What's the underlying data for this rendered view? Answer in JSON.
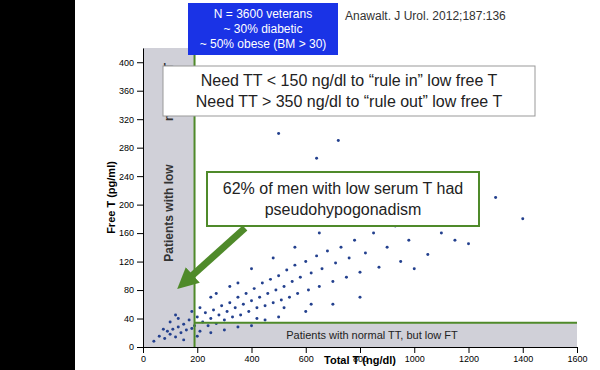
{
  "chart_data": {
    "type": "scatter",
    "x_label": "Total T (ng/dl)",
    "y_label": "Free T (pg/ml)",
    "xlim": [
      0,
      1600
    ],
    "xticks": [
      0,
      200,
      400,
      600,
      800,
      1000,
      1200,
      1400,
      1600
    ],
    "ylim": [
      0,
      420
    ],
    "yticks": [
      0,
      40,
      80,
      120,
      160,
      200,
      240,
      280,
      320,
      360,
      400
    ],
    "color": "#23408e",
    "marker": "circle",
    "x": [
      60,
      80,
      90,
      100,
      110,
      120,
      130,
      140,
      150,
      160,
      170,
      180,
      190,
      200,
      210,
      220,
      230,
      240,
      250,
      260,
      270,
      280,
      290,
      300,
      310,
      320,
      330,
      340,
      350,
      360,
      370,
      380,
      390,
      400,
      410,
      420,
      430,
      440,
      450,
      460,
      470,
      480,
      490,
      500,
      510,
      520,
      530,
      540,
      550,
      560,
      570,
      580,
      600,
      610,
      620,
      640,
      650,
      660,
      680,
      700,
      710,
      730,
      750,
      760,
      780,
      800,
      820,
      850,
      870,
      900,
      930,
      950,
      980,
      1000,
      1050,
      1100,
      1150,
      1200,
      1300,
      1400,
      150,
      200,
      250,
      300,
      350,
      400,
      450,
      500,
      600,
      700,
      800,
      100,
      180,
      250,
      320,
      400,
      480,
      560,
      650,
      750,
      850,
      300,
      500,
      720,
      560,
      900,
      1000,
      1150,
      620,
      520,
      420,
      350,
      270,
      210,
      130,
      75,
      40,
      120,
      640,
      500
    ],
    "values": [
      15,
      12,
      22,
      18,
      25,
      14,
      28,
      20,
      32,
      24,
      38,
      26,
      30,
      42,
      22,
      35,
      48,
      30,
      40,
      52,
      33,
      45,
      58,
      38,
      50,
      62,
      42,
      55,
      70,
      45,
      60,
      75,
      50,
      65,
      82,
      55,
      70,
      90,
      58,
      75,
      95,
      62,
      80,
      100,
      66,
      85,
      108,
      70,
      92,
      115,
      75,
      98,
      120,
      80,
      104,
      128,
      85,
      110,
      135,
      92,
      118,
      140,
      98,
      125,
      150,
      105,
      132,
      160,
      112,
      140,
      170,
      120,
      150,
      175,
      130,
      160,
      190,
      145,
      210,
      180,
      10,
      15,
      20,
      24,
      28,
      30,
      38,
      42,
      50,
      60,
      70,
      35,
      50,
      70,
      85,
      110,
      125,
      140,
      160,
      190,
      200,
      210,
      240,
      290,
      175,
      230,
      110,
      150,
      60,
      55,
      40,
      90,
      75,
      55,
      40,
      25,
      8,
      45,
      265,
      300
    ],
    "thresholds": {
      "x": 190,
      "y": 34
    },
    "annotations": {
      "citation": "Anawalt. J Urol. 2012;187:136",
      "study": [
        "N = 3600 veterans",
        "~ 30% diabetic",
        "~ 50% obese (BM > 30)"
      ],
      "rule": [
        "Need TT < 150 ng/dl to “rule in” low free T",
        "Need TT > 350 ng/dl to “rule out” low free T"
      ],
      "finding": [
        "62% of men with low serum T had",
        "pseudohypogonadism"
      ],
      "low_tt_band": [
        "Patients with low",
        "normal FT"
      ],
      "low_ft_band": "Patients with normal TT, but low FT"
    }
  }
}
